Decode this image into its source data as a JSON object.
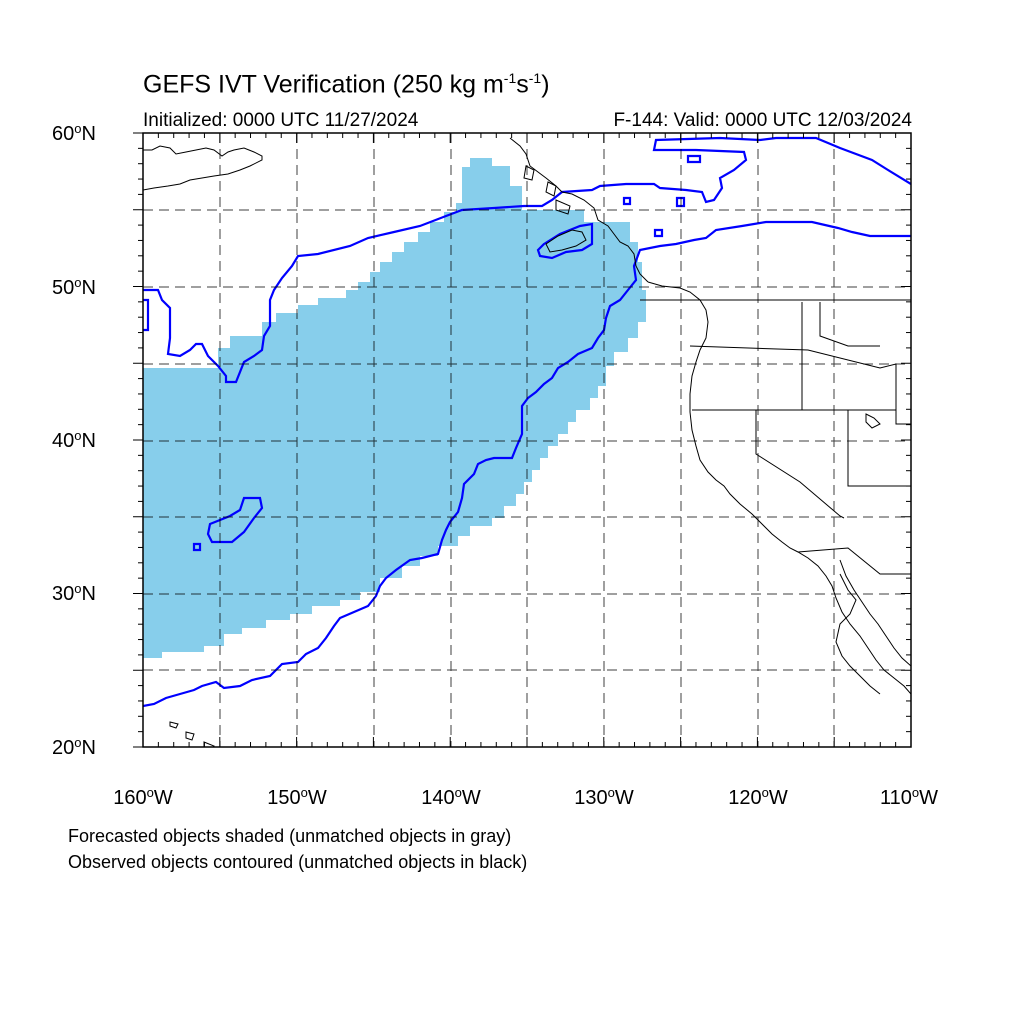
{
  "title": {
    "prefix": "GEFS IVT Verification (250 kg m",
    "exp1": "-1",
    "mid": "s",
    "exp2": "-1",
    "suffix": ")"
  },
  "initialized": "Initialized: 0000 UTC 11/27/2024",
  "valid": "F-144: Valid: 0000 UTC 12/03/2024",
  "lat_labels": [
    {
      "value": "60",
      "suffix": "N"
    },
    {
      "value": "50",
      "suffix": "N"
    },
    {
      "value": "40",
      "suffix": "N"
    },
    {
      "value": "30",
      "suffix": "N"
    },
    {
      "value": "20",
      "suffix": "N"
    }
  ],
  "lon_labels": [
    {
      "value": "160",
      "suffix": "W"
    },
    {
      "value": "150",
      "suffix": "W"
    },
    {
      "value": "140",
      "suffix": "W"
    },
    {
      "value": "130",
      "suffix": "W"
    },
    {
      "value": "120",
      "suffix": "W"
    },
    {
      "value": "110",
      "suffix": "W"
    }
  ],
  "captions": [
    "Forecasted objects shaded (unmatched objects in gray)",
    "Observed objects contoured (unmatched objects in black)"
  ],
  "map": {
    "lon_range": [
      -160,
      -110
    ],
    "lat_range": [
      20,
      60
    ],
    "grid": "dashed every 5 degrees",
    "colors": {
      "forecast_fill": "#87ceeb",
      "observed_contour": "#0000ff",
      "coastline": "#000000"
    }
  }
}
